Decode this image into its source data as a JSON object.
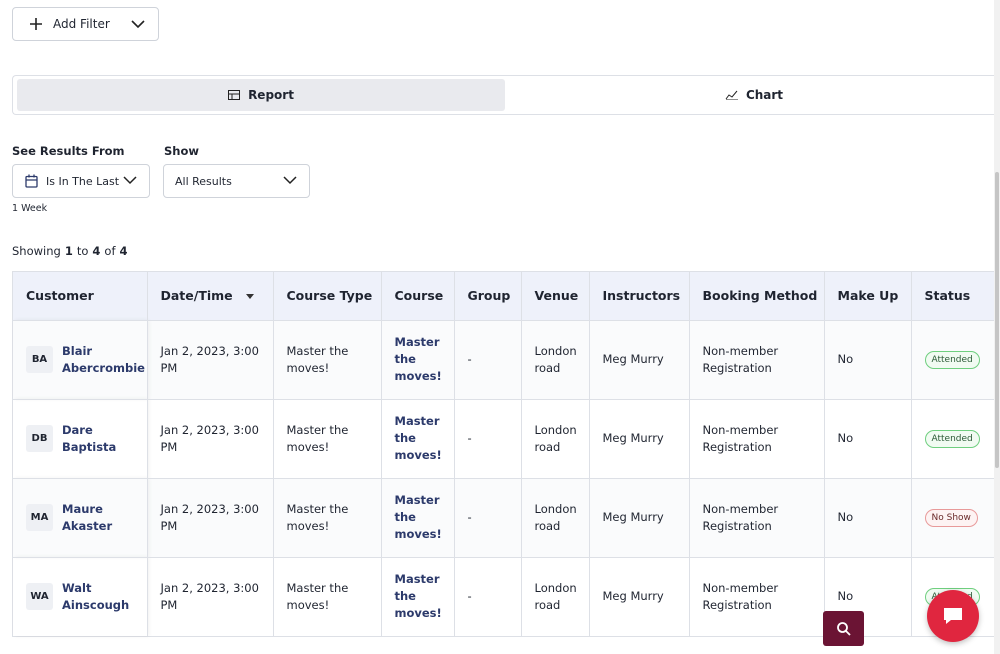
{
  "filter_button": {
    "label": "Add Filter"
  },
  "tabs": [
    "Report",
    "Chart"
  ],
  "filters": {
    "see_results_from": {
      "label": "See Results From",
      "value": "Is In The Last",
      "hint": "1 Week"
    },
    "show": {
      "label": "Show",
      "value": "All Results"
    }
  },
  "showing": {
    "word": "Showing",
    "from": 1,
    "to_word": "to",
    "to": 4,
    "of_word": "of",
    "total": 4
  },
  "table": {
    "headers": [
      "Customer",
      "Date/Time",
      "Course Type",
      "Course",
      "Group",
      "Venue",
      "Instructors",
      "Booking Method",
      "Make Up",
      "Status"
    ],
    "rows": [
      {
        "initials": "BA",
        "customer": "Blair Abercrombie",
        "date": "Jan 2, 2023, 3:00 PM",
        "course_type": "Master the moves!",
        "course": "Master the moves!",
        "group": "-",
        "venue": "London road",
        "instructor": "Meg Murry",
        "booking": "Non-member Registration",
        "make_up": "No",
        "status": "Attended"
      },
      {
        "initials": "DB",
        "customer": "Dare Baptista",
        "date": "Jan 2, 2023, 3:00 PM",
        "course_type": "Master the moves!",
        "course": "Master the moves!",
        "group": "-",
        "venue": "London road",
        "instructor": "Meg Murry",
        "booking": "Non-member Registration",
        "make_up": "No",
        "status": "Attended"
      },
      {
        "initials": "MA",
        "customer": "Maure Akaster",
        "date": "Jan 2, 2023, 3:00 PM",
        "course_type": "Master the moves!",
        "course": "Master the moves!",
        "group": "-",
        "venue": "London road",
        "instructor": "Meg Murry",
        "booking": "Non-member Registration",
        "make_up": "No",
        "status": "No Show"
      },
      {
        "initials": "WA",
        "customer": "Walt Ainscough",
        "date": "Jan 2, 2023, 3:00 PM",
        "course_type": "Master the moves!",
        "course": "Master the moves!",
        "group": "-",
        "venue": "London road",
        "instructor": "Meg Murry",
        "booking": "Non-member Registration",
        "make_up": "No",
        "status": "Attended"
      }
    ]
  }
}
